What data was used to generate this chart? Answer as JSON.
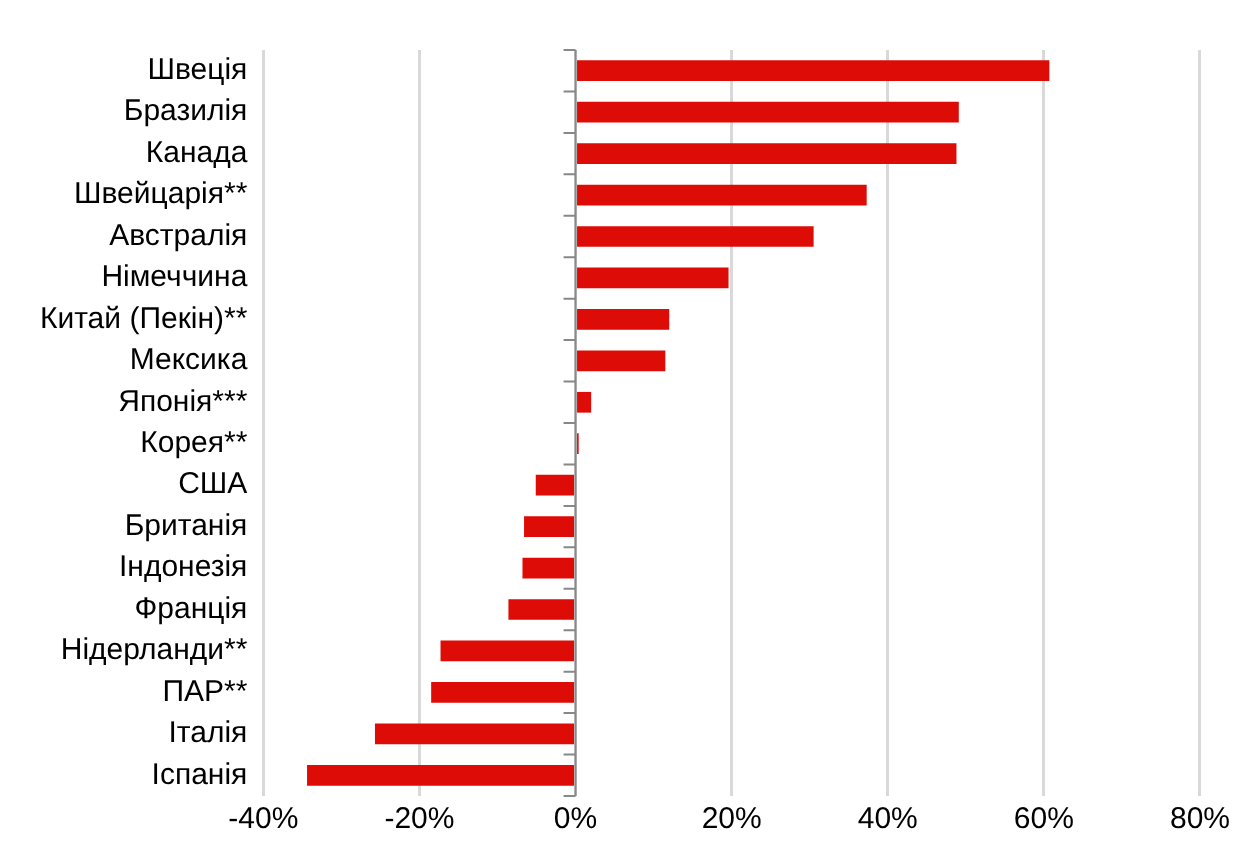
{
  "chart_data": {
    "type": "bar",
    "orientation": "horizontal",
    "categories": [
      "Швеція",
      "Бразилія",
      "Канада",
      "Швейцарія**",
      "Австралія",
      "Німеччина",
      "Китай (Пекін)**",
      "Мексика",
      "Японія***",
      "Корея**",
      "США",
      "Британія",
      "Індонезія",
      "Франція",
      "Нідерланди**",
      "ПАР**",
      "Італія",
      "Іспанія"
    ],
    "values": [
      60.7,
      49.1,
      48.8,
      37.3,
      30.5,
      19.6,
      12.0,
      11.5,
      2.0,
      0.4,
      -5.1,
      -6.6,
      -6.8,
      -8.6,
      -17.3,
      -18.5,
      -25.7,
      -34.4
    ],
    "color": "#dd0c07",
    "xlim": [
      -40,
      80
    ],
    "xticks": [
      {
        "value": -40,
        "label": "-40%"
      },
      {
        "value": -20,
        "label": "-20%"
      },
      {
        "value": 0,
        "label": "0%"
      },
      {
        "value": 20,
        "label": "20%"
      },
      {
        "value": 40,
        "label": "40%"
      },
      {
        "value": 60,
        "label": "60%"
      },
      {
        "value": 80,
        "label": "80%"
      }
    ],
    "grid": "x",
    "legend": false
  }
}
